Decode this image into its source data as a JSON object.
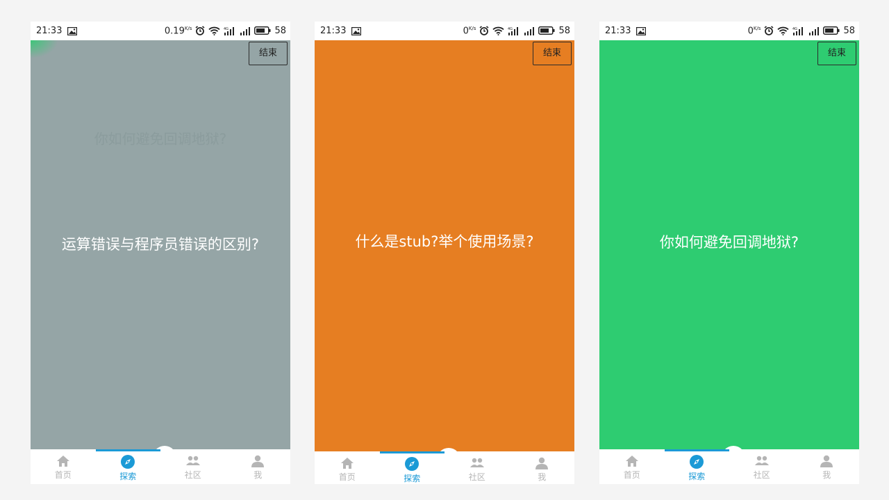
{
  "screens": [
    {
      "status": {
        "time": "21:33",
        "speed": "0.19",
        "speed_unit": "K/s",
        "battery": "58"
      },
      "card": {
        "color": "#95a5a6",
        "question": "运算错误与程序员错误的区别?",
        "ghost_text": "你如何避免回调地狱?"
      },
      "end_label": "结束",
      "nav": [
        "首页",
        "探索",
        "社区",
        "我"
      ],
      "active_tab": 1
    },
    {
      "status": {
        "time": "21:33",
        "speed": "0",
        "speed_unit": "K/s",
        "battery": "58"
      },
      "card": {
        "color": "#e67e22",
        "question": "什么是stub?举个使用场景?"
      },
      "end_label": "结束",
      "nav": [
        "首页",
        "探索",
        "社区",
        "我"
      ],
      "active_tab": 1
    },
    {
      "status": {
        "time": "21:33",
        "speed": "0",
        "speed_unit": "K/s",
        "battery": "58"
      },
      "card": {
        "color": "#2ecc71",
        "question": "你如何避免回调地狱?"
      },
      "end_label": "结束",
      "nav": [
        "首页",
        "探索",
        "社区",
        "我"
      ],
      "active_tab": 1
    }
  ],
  "colors": {
    "accent": "#1b9ad6",
    "inactive": "#b5b5b5"
  },
  "icons": [
    "image-icon",
    "alarm-icon",
    "wifi-icon",
    "signal-4g-icon",
    "signal-icon",
    "battery-icon",
    "home-icon",
    "compass-icon",
    "community-icon",
    "user-icon"
  ]
}
